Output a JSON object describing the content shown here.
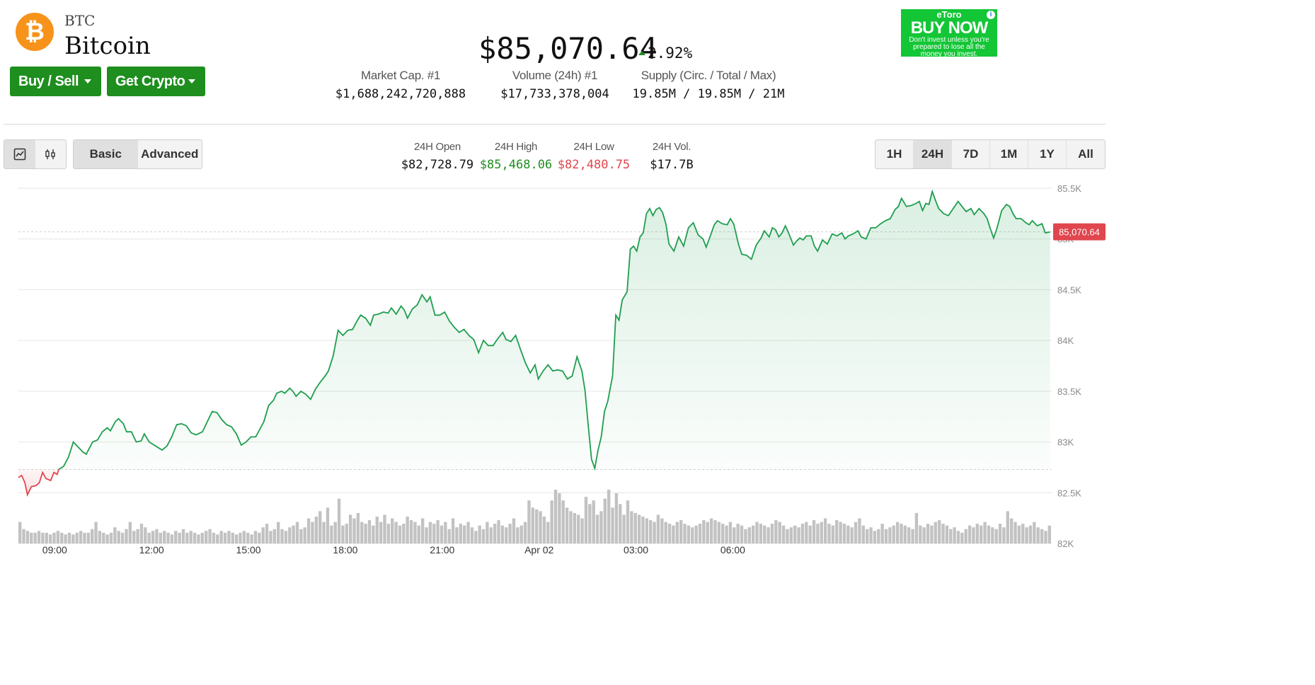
{
  "coin": {
    "symbol": "BTC",
    "name": "Bitcoin",
    "logo_glyph": "₿",
    "logo_color": "#f7931a"
  },
  "actions": {
    "buy_sell_label": "Buy / Sell",
    "get_crypto_label": "Get Crypto"
  },
  "price": {
    "value": "$85,070.64",
    "change_pct": "2.92%",
    "change_direction": "up"
  },
  "stats": [
    {
      "label": "Market Cap. #1",
      "value": "$1,688,242,720,888"
    },
    {
      "label": "Volume (24h) #1",
      "value": "$17,733,378,004"
    },
    {
      "label": "Supply (Circ. / Total / Max)",
      "value": "19.85M / 19.85M / 21M"
    }
  ],
  "ad": {
    "brand": "eToro",
    "cta": "BUY NOW",
    "disclaimer": "Don't invest unless you're prepared to lose all the money you invest.",
    "info_glyph": "i"
  },
  "toolbar": {
    "chart_type_icons": [
      "line-chart-icon",
      "candlestick-icon"
    ],
    "modes": [
      {
        "label": "Basic",
        "active": true
      },
      {
        "label": "Advanced",
        "active": false
      }
    ],
    "ranges": [
      {
        "label": "1H",
        "active": false
      },
      {
        "label": "24H",
        "active": true
      },
      {
        "label": "7D",
        "active": false
      },
      {
        "label": "1M",
        "active": false
      },
      {
        "label": "1Y",
        "active": false
      },
      {
        "label": "All",
        "active": false
      }
    ]
  },
  "ohlc": [
    {
      "label": "24H Open",
      "value": "$82,728.79",
      "color": "#111111"
    },
    {
      "label": "24H High",
      "value": "$85,468.06",
      "color": "#1e8e1e"
    },
    {
      "label": "24H Low",
      "value": "$82,480.75",
      "color": "#e0464e"
    },
    {
      "label": "24H Vol.",
      "value": "$17.7B",
      "color": "#111111"
    }
  ],
  "chart_data": {
    "type": "area",
    "baseline": 82728.79,
    "current_price": 85070.64,
    "current_price_label": "85,070.64",
    "ylim": [
      82000,
      85500
    ],
    "y_ticks": [
      {
        "value": 85500,
        "label": "85.5K"
      },
      {
        "value": 85000,
        "label": "85K"
      },
      {
        "value": 84500,
        "label": "84.5K"
      },
      {
        "value": 84000,
        "label": "84K"
      },
      {
        "value": 83500,
        "label": "83.5K"
      },
      {
        "value": 83000,
        "label": "83K"
      },
      {
        "value": 82500,
        "label": "82.5K"
      },
      {
        "value": 82000,
        "label": "82K"
      }
    ],
    "x_ticks": [
      {
        "hour": 1.125,
        "label": "09:00"
      },
      {
        "hour": 4.125,
        "label": "12:00"
      },
      {
        "hour": 7.125,
        "label": "15:00"
      },
      {
        "hour": 10.125,
        "label": "18:00"
      },
      {
        "hour": 13.125,
        "label": "21:00"
      },
      {
        "hour": 16.125,
        "label": "Apr 02"
      },
      {
        "hour": 19.125,
        "label": "03:00"
      },
      {
        "hour": 22.125,
        "label": "06:00"
      }
    ],
    "x_range_hours": [
      0,
      24
    ],
    "colors": {
      "up": "#1e9e4e",
      "down": "#e0464e",
      "volume": "#c2c2c2",
      "price_tag": "#e0464e"
    },
    "price_points": [
      [
        0.0,
        82650
      ],
      [
        0.1,
        82670
      ],
      [
        0.2,
        82600
      ],
      [
        0.28,
        82480
      ],
      [
        0.4,
        82560
      ],
      [
        0.55,
        82570
      ],
      [
        0.65,
        82600
      ],
      [
        0.75,
        82700
      ],
      [
        0.85,
        82640
      ],
      [
        1.0,
        82620
      ],
      [
        1.1,
        82700
      ],
      [
        1.2,
        82680
      ],
      [
        1.25,
        82730
      ],
      [
        1.4,
        82760
      ],
      [
        1.55,
        82850
      ],
      [
        1.7,
        83000
      ],
      [
        1.85,
        82950
      ],
      [
        2.0,
        82900
      ],
      [
        2.1,
        82880
      ],
      [
        2.3,
        83000
      ],
      [
        2.45,
        83020
      ],
      [
        2.6,
        83100
      ],
      [
        2.75,
        83140
      ],
      [
        2.85,
        83110
      ],
      [
        3.0,
        83200
      ],
      [
        3.1,
        83230
      ],
      [
        3.25,
        83180
      ],
      [
        3.35,
        83100
      ],
      [
        3.5,
        83100
      ],
      [
        3.65,
        83000
      ],
      [
        3.8,
        83010
      ],
      [
        3.9,
        83080
      ],
      [
        4.05,
        83000
      ],
      [
        4.15,
        82980
      ],
      [
        4.3,
        82950
      ],
      [
        4.45,
        82920
      ],
      [
        4.6,
        82960
      ],
      [
        4.75,
        83050
      ],
      [
        4.9,
        83170
      ],
      [
        5.05,
        83180
      ],
      [
        5.2,
        83160
      ],
      [
        5.35,
        83090
      ],
      [
        5.5,
        83070
      ],
      [
        5.7,
        83100
      ],
      [
        5.85,
        83200
      ],
      [
        6.0,
        83300
      ],
      [
        6.15,
        83290
      ],
      [
        6.3,
        83220
      ],
      [
        6.45,
        83170
      ],
      [
        6.6,
        83150
      ],
      [
        6.75,
        83080
      ],
      [
        6.9,
        82970
      ],
      [
        7.05,
        83000
      ],
      [
        7.2,
        83050
      ],
      [
        7.35,
        83050
      ],
      [
        7.5,
        83140
      ],
      [
        7.6,
        83200
      ],
      [
        7.75,
        83360
      ],
      [
        7.9,
        83410
      ],
      [
        8.0,
        83480
      ],
      [
        8.15,
        83500
      ],
      [
        8.25,
        83480
      ],
      [
        8.4,
        83530
      ],
      [
        8.5,
        83500
      ],
      [
        8.6,
        83450
      ],
      [
        8.75,
        83500
      ],
      [
        8.9,
        83470
      ],
      [
        9.05,
        83420
      ],
      [
        9.2,
        83520
      ],
      [
        9.35,
        83590
      ],
      [
        9.5,
        83650
      ],
      [
        9.6,
        83700
      ],
      [
        9.75,
        83850
      ],
      [
        9.9,
        84100
      ],
      [
        10.05,
        84050
      ],
      [
        10.2,
        84100
      ],
      [
        10.35,
        84110
      ],
      [
        10.5,
        84200
      ],
      [
        10.6,
        84250
      ],
      [
        10.75,
        84220
      ],
      [
        10.9,
        84150
      ],
      [
        11.0,
        84250
      ],
      [
        11.15,
        84260
      ],
      [
        11.3,
        84280
      ],
      [
        11.45,
        84270
      ],
      [
        11.55,
        84320
      ],
      [
        11.7,
        84260
      ],
      [
        11.85,
        84340
      ],
      [
        11.95,
        84300
      ],
      [
        12.05,
        84220
      ],
      [
        12.2,
        84310
      ],
      [
        12.35,
        84350
      ],
      [
        12.5,
        84450
      ],
      [
        12.65,
        84380
      ],
      [
        12.75,
        84430
      ],
      [
        12.9,
        84250
      ],
      [
        13.05,
        84250
      ],
      [
        13.2,
        84280
      ],
      [
        13.35,
        84190
      ],
      [
        13.5,
        84130
      ],
      [
        13.65,
        84080
      ],
      [
        13.8,
        84110
      ],
      [
        13.95,
        84050
      ],
      [
        14.1,
        84010
      ],
      [
        14.25,
        83880
      ],
      [
        14.4,
        84000
      ],
      [
        14.55,
        83950
      ],
      [
        14.7,
        83950
      ],
      [
        14.85,
        84020
      ],
      [
        15.0,
        84080
      ],
      [
        15.1,
        84010
      ],
      [
        15.25,
        83990
      ],
      [
        15.4,
        84050
      ],
      [
        15.55,
        83910
      ],
      [
        15.7,
        83780
      ],
      [
        15.85,
        83680
      ],
      [
        16.0,
        83760
      ],
      [
        16.1,
        83620
      ],
      [
        16.25,
        83700
      ],
      [
        16.4,
        83760
      ],
      [
        16.55,
        83700
      ],
      [
        16.7,
        83710
      ],
      [
        16.85,
        83700
      ],
      [
        17.0,
        83620
      ],
      [
        17.15,
        83650
      ],
      [
        17.3,
        83840
      ],
      [
        17.45,
        83700
      ],
      [
        17.55,
        83500
      ],
      [
        17.65,
        83150
      ],
      [
        17.75,
        82830
      ],
      [
        17.85,
        82740
      ],
      [
        17.95,
        82920
      ],
      [
        18.05,
        83050
      ],
      [
        18.15,
        83300
      ],
      [
        18.25,
        83400
      ],
      [
        18.4,
        83650
      ],
      [
        18.5,
        84250
      ],
      [
        18.6,
        84200
      ],
      [
        18.7,
        84400
      ],
      [
        18.85,
        84480
      ],
      [
        18.95,
        84900
      ],
      [
        19.05,
        84930
      ],
      [
        19.15,
        84880
      ],
      [
        19.25,
        85020
      ],
      [
        19.35,
        85060
      ],
      [
        19.45,
        85250
      ],
      [
        19.55,
        85300
      ],
      [
        19.65,
        85230
      ],
      [
        19.75,
        85290
      ],
      [
        19.85,
        85310
      ],
      [
        19.95,
        85260
      ],
      [
        20.05,
        85150
      ],
      [
        20.15,
        84950
      ],
      [
        20.3,
        84880
      ],
      [
        20.45,
        85020
      ],
      [
        20.6,
        84930
      ],
      [
        20.75,
        85110
      ],
      [
        20.9,
        85160
      ],
      [
        21.05,
        85040
      ],
      [
        21.2,
        85000
      ],
      [
        21.3,
        84920
      ],
      [
        21.45,
        85050
      ],
      [
        21.55,
        85140
      ],
      [
        21.65,
        85180
      ],
      [
        21.8,
        85150
      ],
      [
        21.95,
        85140
      ],
      [
        22.05,
        85200
      ],
      [
        22.15,
        85150
      ],
      [
        22.3,
        84950
      ],
      [
        22.4,
        84850
      ],
      [
        22.55,
        84840
      ],
      [
        22.7,
        84800
      ],
      [
        22.85,
        84940
      ],
      [
        23.0,
        85010
      ],
      [
        23.1,
        85080
      ],
      [
        23.25,
        85020
      ],
      [
        23.35,
        85110
      ],
      [
        23.45,
        85090
      ],
      [
        23.55,
        85020
      ],
      [
        23.65,
        85060
      ],
      [
        23.75,
        85130
      ],
      [
        23.85,
        85060
      ],
      [
        24.0,
        84940
      ],
      [
        24.1,
        84980
      ],
      [
        24.2,
        85010
      ],
      [
        24.3,
        84990
      ],
      [
        24.4,
        85030
      ],
      [
        24.55,
        85030
      ],
      [
        24.65,
        84930
      ],
      [
        24.75,
        84880
      ],
      [
        24.9,
        84990
      ],
      [
        25.05,
        84950
      ],
      [
        25.2,
        85050
      ],
      [
        25.35,
        85030
      ],
      [
        25.5,
        85060
      ],
      [
        25.6,
        85000
      ],
      [
        25.7,
        85030
      ],
      [
        25.85,
        85050
      ],
      [
        26.0,
        85080
      ],
      [
        26.1,
        85020
      ],
      [
        26.25,
        85000
      ],
      [
        26.4,
        85110
      ],
      [
        26.55,
        85110
      ],
      [
        26.7,
        85150
      ],
      [
        26.85,
        85180
      ],
      [
        27.0,
        85200
      ],
      [
        27.15,
        85290
      ],
      [
        27.25,
        85320
      ],
      [
        27.35,
        85400
      ],
      [
        27.5,
        85320
      ],
      [
        27.65,
        85330
      ],
      [
        27.8,
        85350
      ],
      [
        27.9,
        85370
      ],
      [
        28.0,
        85280
      ],
      [
        28.1,
        85350
      ],
      [
        28.2,
        85340
      ],
      [
        28.3,
        85468
      ],
      [
        28.4,
        85380
      ],
      [
        28.5,
        85300
      ],
      [
        28.65,
        85250
      ],
      [
        28.8,
        85230
      ],
      [
        28.95,
        85300
      ],
      [
        29.1,
        85370
      ],
      [
        29.25,
        85310
      ],
      [
        29.35,
        85270
      ],
      [
        29.5,
        85300
      ],
      [
        29.6,
        85240
      ],
      [
        29.75,
        85300
      ],
      [
        29.9,
        85250
      ],
      [
        30.0,
        85200
      ],
      [
        30.1,
        85100
      ],
      [
        30.2,
        85010
      ],
      [
        30.3,
        85100
      ],
      [
        30.45,
        85280
      ],
      [
        30.6,
        85340
      ],
      [
        30.7,
        85320
      ],
      [
        30.8,
        85250
      ],
      [
        30.9,
        85200
      ],
      [
        31.05,
        85200
      ],
      [
        31.2,
        85160
      ],
      [
        31.3,
        85140
      ],
      [
        31.4,
        85180
      ],
      [
        31.55,
        85130
      ],
      [
        31.7,
        85150
      ],
      [
        31.8,
        85060
      ],
      [
        31.95,
        85070
      ]
    ],
    "volume": [
      12,
      8,
      7,
      6,
      6,
      7,
      6,
      6,
      5,
      6,
      7,
      6,
      5,
      6,
      5,
      6,
      7,
      6,
      6,
      8,
      12,
      7,
      6,
      5,
      6,
      9,
      7,
      6,
      8,
      12,
      7,
      8,
      11,
      9,
      6,
      7,
      8,
      6,
      7,
      6,
      5,
      7,
      6,
      8,
      6,
      7,
      6,
      5,
      6,
      7,
      8,
      6,
      5,
      7,
      6,
      7,
      6,
      5,
      6,
      7,
      6,
      5,
      7,
      6,
      9,
      11,
      7,
      8,
      12,
      8,
      7,
      9,
      10,
      12,
      8,
      9,
      14,
      12,
      15,
      18,
      12,
      20,
      10,
      12,
      25,
      10,
      11,
      16,
      14,
      17,
      12,
      11,
      13,
      10,
      15,
      12,
      16,
      11,
      14,
      12,
      10,
      11,
      15,
      13,
      12,
      10,
      14,
      9,
      12,
      11,
      13,
      10,
      12,
      8,
      14,
      9,
      11,
      10,
      12,
      9,
      7,
      10,
      8,
      12,
      9,
      11,
      13,
      10,
      9,
      11,
      14,
      9,
      10,
      12,
      24,
      20,
      19,
      18,
      15,
      12,
      24,
      30,
      28,
      24,
      20,
      18,
      17,
      16,
      14,
      26,
      22,
      24,
      16,
      18,
      25,
      30,
      20,
      28,
      22,
      16,
      24,
      18,
      17,
      16,
      15,
      14,
      13,
      12,
      16,
      14,
      12,
      11,
      10,
      12,
      13,
      11,
      10,
      9,
      10,
      11,
      13,
      12,
      14,
      13,
      12,
      11,
      10,
      12,
      9,
      11,
      10,
      8,
      9,
      10,
      12,
      11,
      10,
      9,
      11,
      13,
      12,
      10,
      8,
      9,
      10,
      9,
      11,
      12,
      10,
      13,
      11,
      12,
      14,
      11,
      10,
      13,
      12,
      11,
      10,
      9,
      12,
      14,
      10,
      8,
      9,
      7,
      8,
      11,
      8,
      9,
      10,
      12,
      11,
      10,
      9,
      8,
      17,
      10,
      9,
      11,
      10,
      12,
      13,
      11,
      10,
      8,
      9,
      7,
      6,
      8,
      10,
      9,
      11,
      10,
      12,
      10,
      9,
      8,
      11,
      9,
      18,
      14,
      12,
      10,
      11,
      9,
      10,
      12,
      9,
      8,
      7,
      10
    ]
  }
}
